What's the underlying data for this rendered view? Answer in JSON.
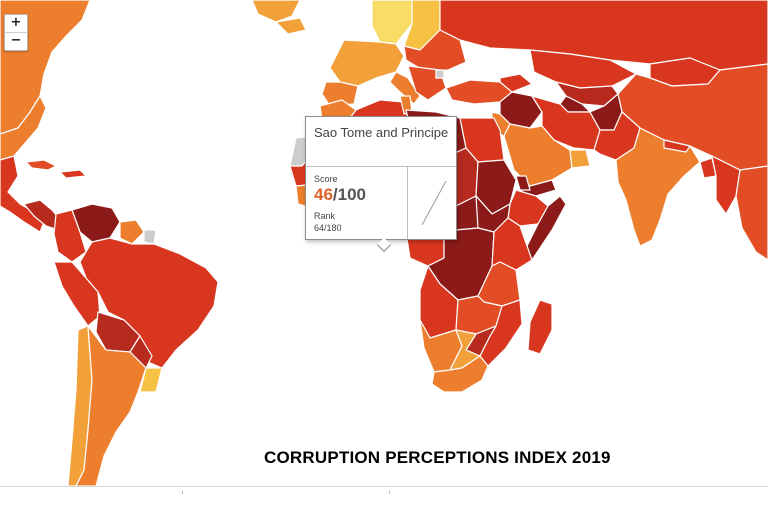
{
  "map": {
    "title": "CORRUPTION PERCEPTIONS INDEX 2019",
    "zoom_in_label": "+",
    "zoom_out_label": "−"
  },
  "palette": {
    "very_dark": "#8c1a18",
    "dark": "#b72a1e",
    "red": "#d9361f",
    "red_orange": "#e24d26",
    "orange": "#ec7e2e",
    "light_orange": "#f2a03a",
    "yellow": "#f7c244",
    "pale": "#f8dc66",
    "no_data": "#cccccc",
    "ocean": "#ffffff",
    "border": "#ffffff"
  },
  "tooltip": {
    "country": "Sao Tome and Principe",
    "score_label": "Score",
    "score": "46",
    "score_max": "/100",
    "rank_label": "Rank",
    "rank": "64/180"
  }
}
